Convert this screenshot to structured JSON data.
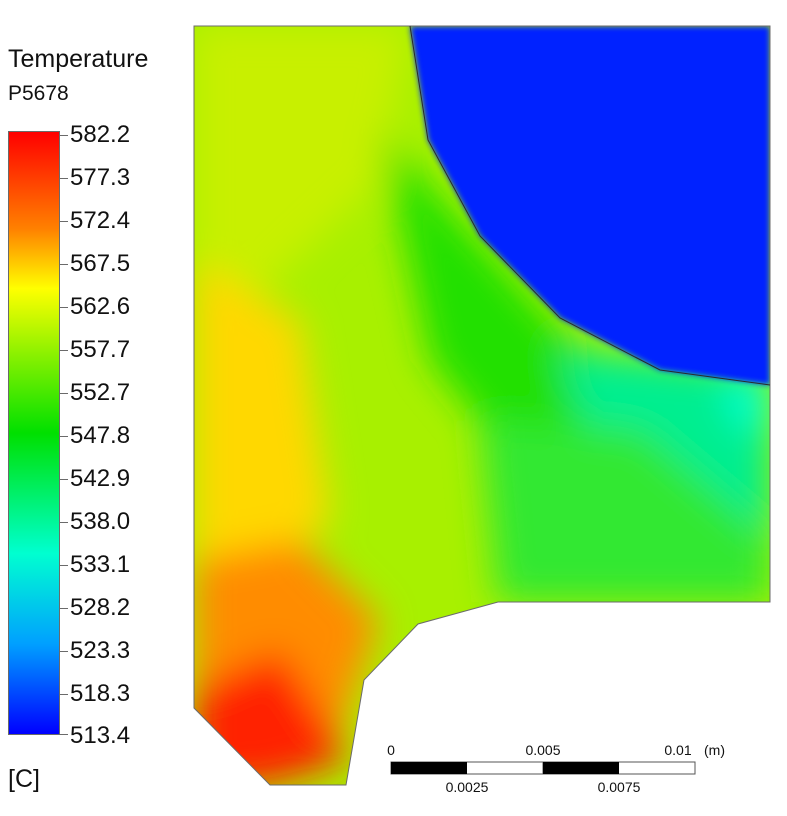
{
  "legend": {
    "title": "Temperature",
    "subtitle": "P5678",
    "unit": "[C]",
    "ticks": [
      "582.2",
      "577.3",
      "572.4",
      "567.5",
      "562.6",
      "557.7",
      "552.7",
      "547.8",
      "542.9",
      "538.0",
      "533.1",
      "528.2",
      "523.3",
      "518.3",
      "513.4"
    ],
    "colors": {
      "max": "#ff0000",
      "high": "#ff8000",
      "upper": "#ffff00",
      "mid": "#00e000",
      "lower": "#00ffd0",
      "low": "#00a0ff",
      "min": "#0000ff"
    }
  },
  "scale_bar": {
    "top_labels": [
      "0",
      "0.005",
      "0.01"
    ],
    "unit": "(m)",
    "bottom_labels": [
      "0.0025",
      "0.0075"
    ]
  }
}
